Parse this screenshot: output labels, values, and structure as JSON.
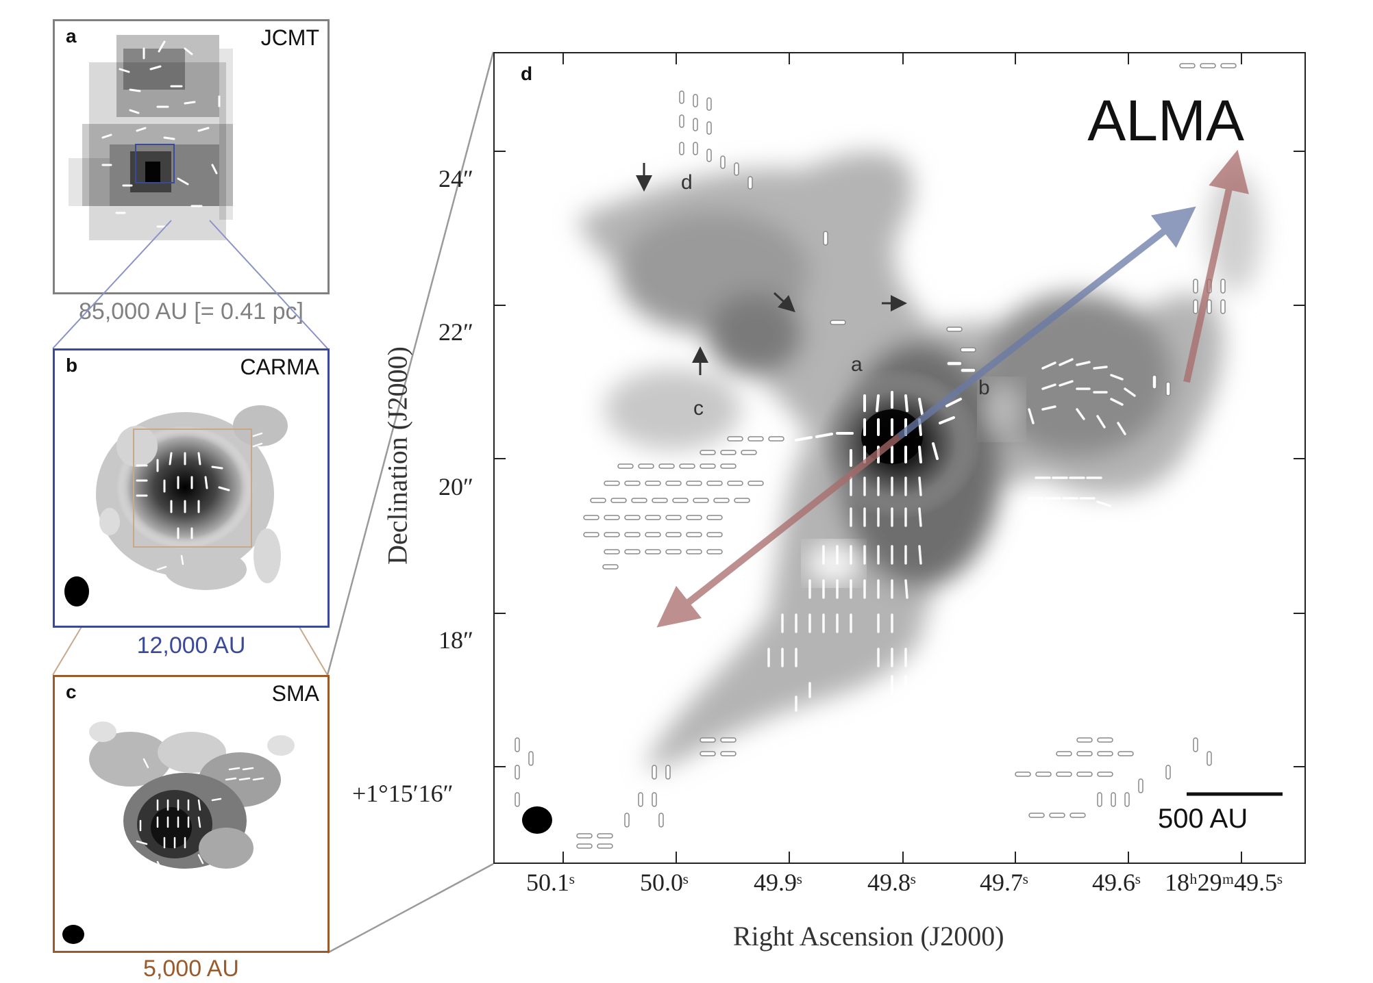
{
  "panels": {
    "a": {
      "label": "a",
      "telescope": "JCMT",
      "scale": "85,000 AU [= 0.41 pc]",
      "border_color": "#808080"
    },
    "b": {
      "label": "b",
      "telescope": "CARMA",
      "scale": "12,000 AU",
      "border_color": "#3a4a9a"
    },
    "c": {
      "label": "c",
      "telescope": "SMA",
      "scale": "5,000 AU",
      "border_color": "#9a5a2a"
    },
    "d": {
      "label": "d",
      "telescope": "ALMA",
      "scalebar": "500 AU",
      "sources": [
        "a",
        "b",
        "c",
        "d"
      ],
      "xlabel": "Right Ascension (J2000)",
      "ylabel": "Declination (J2000)",
      "xticks": [
        "50.1ˢ",
        "50.0ˢ",
        "49.9ˢ",
        "49.8ˢ",
        "49.7ˢ",
        "49.6ˢ",
        "18ʰ29ᵐ49.5ˢ"
      ],
      "yticks": [
        "24″",
        "22″",
        "20″",
        "18″",
        "+1°15′16″"
      ],
      "outflow_red_color": "#a86a6a",
      "outflow_blue_color": "#6a7aa6"
    }
  }
}
